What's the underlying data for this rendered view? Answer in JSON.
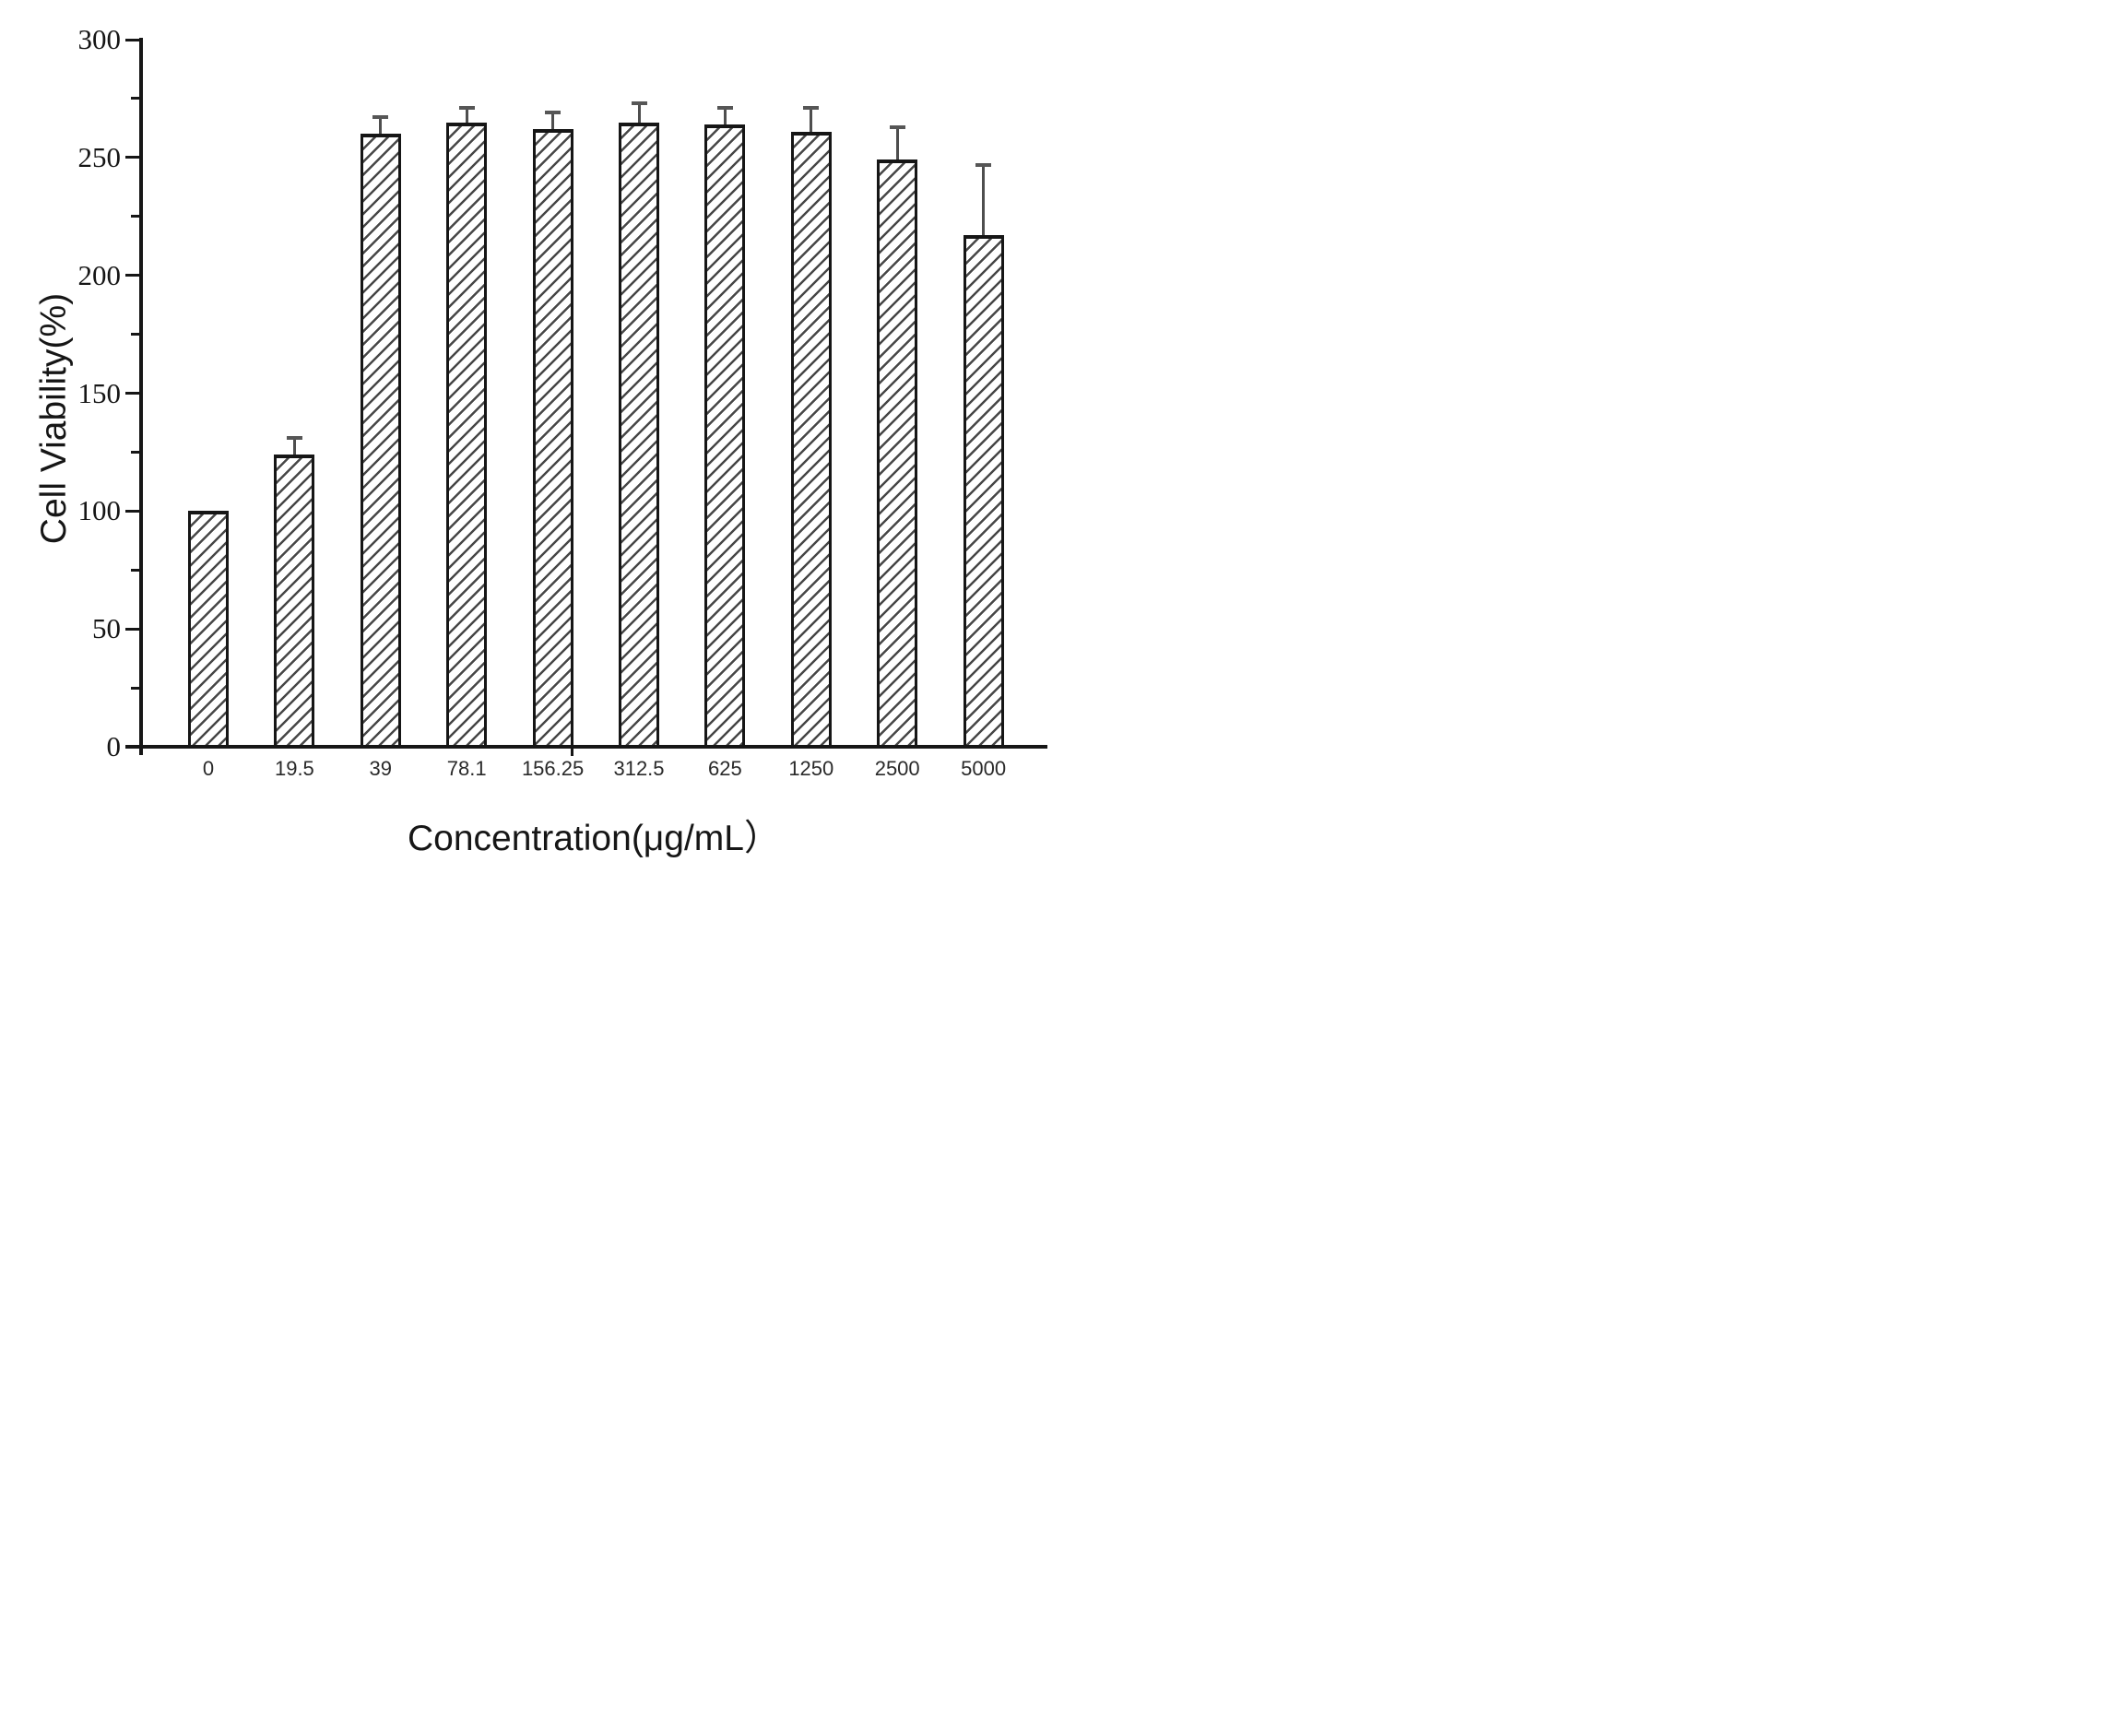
{
  "chart_data": {
    "type": "bar",
    "title": "",
    "xlabel": "Concentration(μg/mL）",
    "ylabel": "Cell Viability(%)",
    "categories": [
      "0",
      "19.5",
      "39",
      "78.1",
      "156.25",
      "312.5",
      "625",
      "1250",
      "2500",
      "5000"
    ],
    "values": [
      100,
      124,
      260,
      265,
      262,
      265,
      264,
      261,
      249,
      217
    ],
    "errors_upper": [
      0,
      7,
      7,
      6,
      7,
      8,
      7,
      10,
      14,
      30
    ],
    "ylim": [
      0,
      300
    ],
    "yticks": [
      0,
      50,
      100,
      150,
      200,
      250,
      300
    ],
    "ytick_labels": [
      "0",
      "50",
      "100",
      "150",
      "200",
      "250",
      "300"
    ],
    "minor_yticks": [
      25,
      75,
      125,
      175,
      225,
      275
    ],
    "grid": false,
    "legend": null,
    "bar_style": "diagonal-hatch",
    "error_bars": "upper-only"
  },
  "colors": {
    "background": "#ffffff",
    "axis": "#161616",
    "text": "#161616",
    "hatch_line": "#474747",
    "error_bar": "#4e4e4e",
    "error_cap": "#565656"
  }
}
